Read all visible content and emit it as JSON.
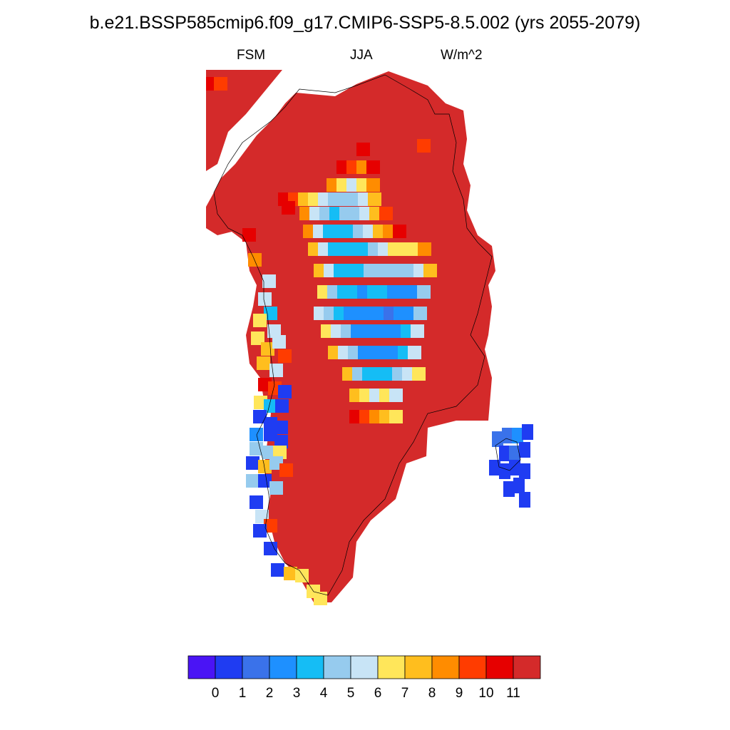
{
  "title": "b.e21.BSSP585cmip6.f09_g17.CMIP6-SSP5-8.5.002 (yrs 2055-2079)",
  "subtitle": {
    "left": "FSM",
    "center": "JJA",
    "right": "W/m^2"
  },
  "colorbar": {
    "colors": [
      "#4a14f5",
      "#1f3cf2",
      "#3a72ea",
      "#1e90ff",
      "#15bdf5",
      "#96cbee",
      "#c8e4f6",
      "#ffe65a",
      "#ffbe1e",
      "#ff8c00",
      "#ff3c00",
      "#e60000",
      "#d42a2a"
    ],
    "labels": [
      "0",
      "1",
      "2",
      "3",
      "4",
      "5",
      "6",
      "7",
      "8",
      "9",
      "10",
      "11"
    ]
  },
  "map_data": {
    "field": "FSM",
    "season": "JJA",
    "units": "W/m^2",
    "region": "Greenland",
    "dominant_level_index": 12,
    "interior_low_region_levels": [
      3,
      4,
      5,
      6,
      7,
      8,
      9,
      10
    ],
    "west_coast_strip_levels": [
      1,
      3,
      4,
      5,
      6,
      7,
      8,
      10
    ],
    "east_coast_island_levels": [
      1,
      2,
      3
    ]
  }
}
